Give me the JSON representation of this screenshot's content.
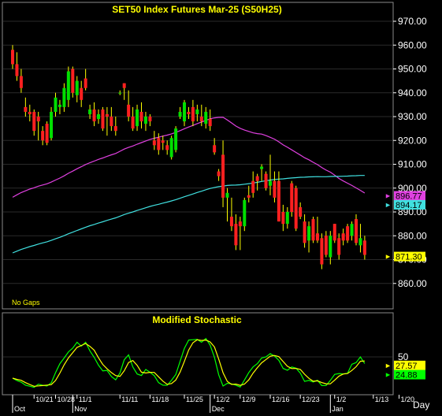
{
  "chart_data": [
    {
      "type": "candlestick",
      "title": "SET50 Index Futures  Mar-25  (S50H25)",
      "note": "No Gaps",
      "ylim": [
        850,
        978
      ],
      "y_ticks": [
        "970.00",
        "960.00",
        "950.00",
        "940.00",
        "930.00",
        "920.00",
        "910.00",
        "900.00",
        "890.00",
        "880.00",
        "870.00",
        "860.00"
      ],
      "y_tick_values": [
        970,
        960,
        950,
        940,
        930,
        920,
        910,
        900,
        890,
        880,
        870,
        860
      ],
      "x_labels": [
        "10/21",
        "10/28",
        "11/1",
        "11/11",
        "11/18",
        "11/25",
        "12/2",
        "12/9",
        "12/16",
        "12/23",
        "1/2",
        "1/13",
        "1/20"
      ],
      "x_label_index": [
        5,
        10,
        15,
        25,
        32,
        40,
        47,
        53,
        60,
        67,
        75,
        84,
        90
      ],
      "month_labels": [
        "Oct",
        "Nov",
        "Dec",
        "Jan"
      ],
      "month_label_index": [
        0,
        14,
        46,
        74
      ],
      "candles": [
        [
          0,
          958,
          960,
          950,
          952
        ],
        [
          1,
          952,
          957,
          945,
          947
        ],
        [
          2,
          947,
          950,
          940,
          942
        ],
        [
          3,
          934,
          938,
          930,
          932
        ],
        [
          4,
          932,
          935,
          928,
          931
        ],
        [
          5,
          932,
          933,
          922,
          924
        ],
        [
          6,
          930,
          932,
          920,
          928
        ],
        [
          7,
          924,
          926,
          918,
          920
        ],
        [
          8,
          927,
          928,
          918,
          919
        ],
        [
          9,
          921,
          934,
          920,
          932
        ],
        [
          10,
          932,
          940,
          930,
          938
        ],
        [
          11,
          934,
          937,
          931,
          935
        ],
        [
          12,
          934,
          944,
          932,
          942
        ],
        [
          13,
          937,
          951,
          934,
          949
        ],
        [
          14,
          950,
          951,
          938,
          940
        ],
        [
          15,
          939,
          947,
          936,
          945
        ],
        [
          16,
          942,
          945,
          934,
          937
        ],
        [
          17,
          946,
          950,
          941,
          942
        ],
        [
          18,
          931,
          935,
          929,
          933
        ],
        [
          19,
          933,
          936,
          926,
          928
        ],
        [
          20,
          929,
          933,
          927,
          931
        ],
        [
          21,
          933,
          934,
          924,
          925
        ],
        [
          22,
          931,
          934,
          922,
          930
        ],
        [
          23,
          930,
          934,
          924,
          926
        ],
        [
          24,
          926,
          930,
          922,
          924
        ],
        [
          25,
          940,
          941,
          939,
          940
        ],
        [
          26,
          944,
          944,
          937,
          942
        ],
        [
          27,
          935,
          941,
          928,
          930
        ],
        [
          28,
          930,
          934,
          924,
          925
        ],
        [
          29,
          926,
          935,
          924,
          933
        ],
        [
          30,
          932,
          936,
          925,
          928
        ],
        [
          31,
          927,
          932,
          924,
          930
        ],
        [
          32,
          930,
          931,
          926,
          928
        ],
        [
          33,
          920,
          924,
          916,
          918
        ],
        [
          34,
          921,
          923,
          914,
          916
        ],
        [
          35,
          920,
          922,
          916,
          919
        ],
        [
          36,
          918,
          920,
          914,
          916
        ],
        [
          37,
          913,
          922,
          912,
          921
        ],
        [
          38,
          916,
          926,
          915,
          925
        ],
        [
          39,
          930,
          934,
          929,
          932
        ],
        [
          40,
          928,
          937,
          926,
          936
        ],
        [
          41,
          932,
          934,
          929,
          931
        ],
        [
          42,
          934,
          937,
          926,
          928
        ],
        [
          43,
          931,
          935,
          928,
          933
        ],
        [
          44,
          930,
          935,
          926,
          928
        ],
        [
          45,
          927,
          934,
          925,
          932
        ],
        [
          46,
          929,
          933,
          924,
          926
        ],
        [
          47,
          918,
          921,
          914,
          915
        ],
        [
          48,
          907,
          908,
          903,
          905
        ],
        [
          49,
          914,
          920,
          892,
          896
        ],
        [
          50,
          896,
          900,
          886,
          898
        ],
        [
          51,
          888,
          896,
          882,
          884
        ],
        [
          52,
          885,
          889,
          874,
          876
        ],
        [
          53,
          886,
          888,
          874,
          884
        ],
        [
          54,
          884,
          896,
          882,
          895
        ],
        [
          55,
          897,
          901,
          894,
          896
        ],
        [
          56,
          903,
          907,
          896,
          898
        ],
        [
          57,
          905,
          906,
          899,
          903
        ],
        [
          58,
          908,
          910,
          903,
          909
        ],
        [
          59,
          906,
          907,
          899,
          900
        ],
        [
          60,
          901,
          914,
          897,
          903
        ],
        [
          61,
          903,
          907,
          894,
          896
        ],
        [
          62,
          903,
          907,
          886,
          886
        ],
        [
          63,
          890,
          893,
          882,
          885
        ],
        [
          64,
          885,
          892,
          883,
          890
        ],
        [
          65,
          902,
          903,
          888,
          890
        ],
        [
          66,
          900,
          901,
          882,
          883
        ],
        [
          67,
          892,
          894,
          887,
          888
        ],
        [
          68,
          886,
          889,
          875,
          877
        ],
        [
          69,
          878,
          886,
          873,
          884
        ],
        [
          70,
          887,
          888,
          877,
          878
        ],
        [
          71,
          881,
          888,
          877,
          878
        ],
        [
          72,
          879,
          881,
          866,
          868
        ],
        [
          73,
          880,
          882,
          871,
          872
        ],
        [
          74,
          871,
          882,
          868,
          880
        ],
        [
          75,
          885,
          885,
          877,
          878
        ],
        [
          76,
          879,
          881,
          870,
          872
        ],
        [
          77,
          881,
          883,
          876,
          878
        ],
        [
          78,
          884,
          885,
          877,
          878
        ],
        [
          79,
          880,
          886,
          878,
          885
        ],
        [
          80,
          887,
          889,
          876,
          877
        ],
        [
          81,
          876,
          885,
          873,
          879
        ],
        [
          82,
          878,
          880,
          870,
          872
        ]
      ],
      "series": [
        {
          "name": "MA-magenta",
          "color": "#e040e0",
          "current": "896.77"
        },
        {
          "name": "MA-cyan",
          "color": "#40e0e0",
          "current": "894.17"
        }
      ],
      "last_price_label": "871.30",
      "label_colors": {
        "896.77": "#e040e0",
        "894.17": "#40e0e0",
        "871.30": "#ffff00"
      }
    },
    {
      "type": "line",
      "title": "Modified  Stochastic",
      "ylim": [
        0,
        100
      ],
      "y_ticks": [
        "50"
      ],
      "y_tick_values": [
        50
      ],
      "series": [
        {
          "name": "%K",
          "color": "#00ff00",
          "current": "24.88"
        },
        {
          "name": "%D",
          "color": "#ffff00",
          "current": "27.57"
        }
      ]
    }
  ],
  "footer": {
    "period_label": "Day"
  }
}
